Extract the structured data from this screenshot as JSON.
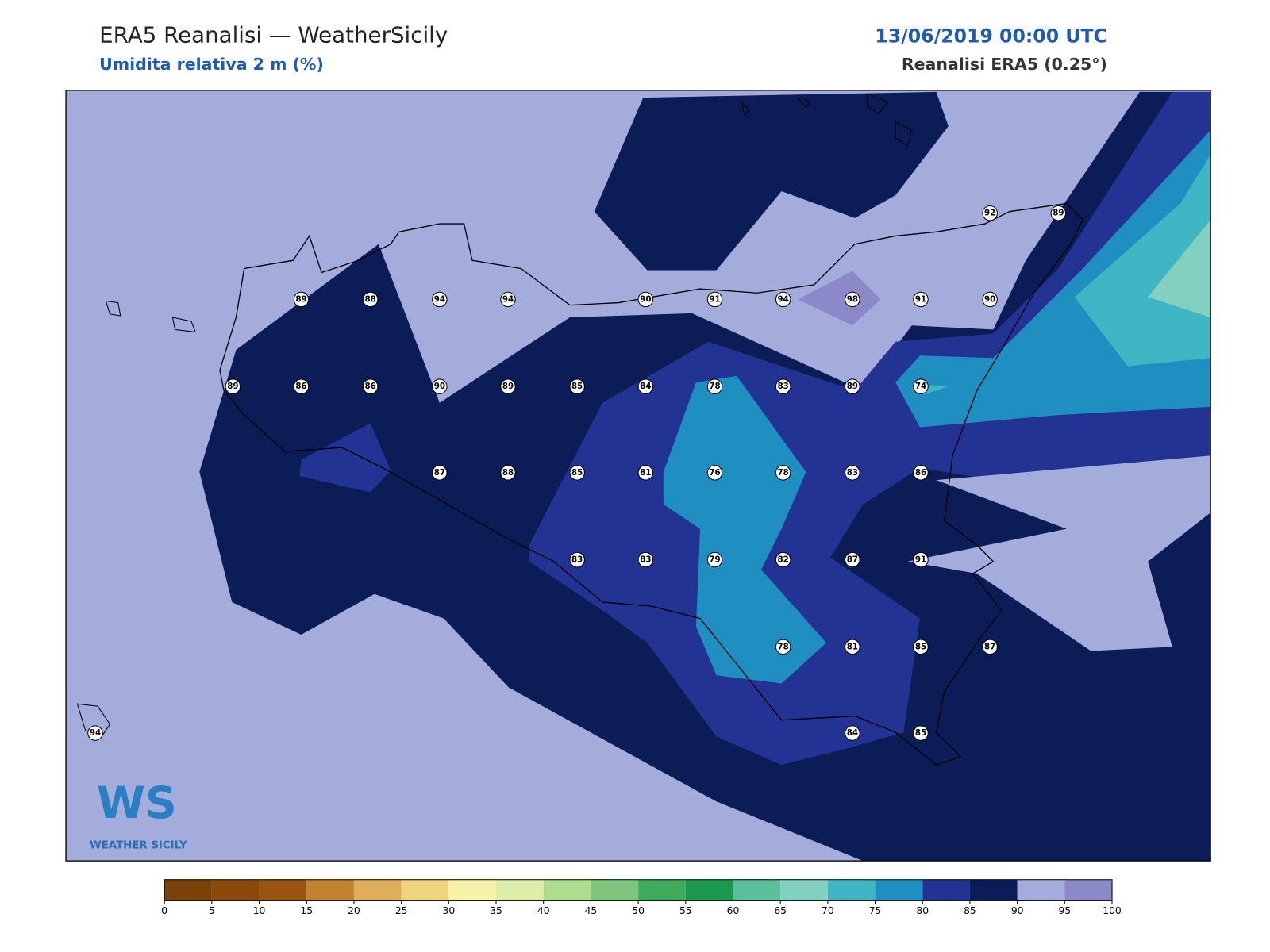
{
  "header": {
    "title": "ERA5 Reanalisi — WeatherSicily",
    "subtitle": "Umidita relativa 2 m (%)",
    "date": "13/06/2019 00:00 UTC",
    "source": "Reanalisi ERA5 (0.25°)"
  },
  "stations": [
    89,
    88,
    94,
    94,
    90,
    91,
    94,
    98,
    91,
    90,
    89,
    86,
    86,
    90,
    89,
    85,
    84,
    78,
    83,
    89,
    74,
    87,
    88,
    85,
    81,
    76,
    78,
    83,
    86,
    83,
    83,
    79,
    82,
    87,
    91,
    78,
    81,
    85,
    87,
    94,
    84,
    85,
    92,
    89
  ],
  "colorbar": {
    "ticks": [
      0,
      5,
      10,
      15,
      20,
      25,
      30,
      35,
      40,
      45,
      50,
      55,
      60,
      65,
      70,
      75,
      80,
      85,
      90,
      95,
      100
    ],
    "colors": [
      "#7a4208",
      "#8b4a0c",
      "#9a5412",
      "#c0822e",
      "#deae5a",
      "#efd47e",
      "#f6f3a8",
      "#dcefa8",
      "#aedd8e",
      "#7cc57a",
      "#40ab5d",
      "#1a9850",
      "#5bbf9c",
      "#82d0c0",
      "#40b6c5",
      "#1f8fc2",
      "#233394",
      "#0b1d57",
      "#a4acdc",
      "#8c89c8"
    ]
  },
  "logo": {
    "mark": "WS",
    "name": "WEATHER SICILY"
  }
}
